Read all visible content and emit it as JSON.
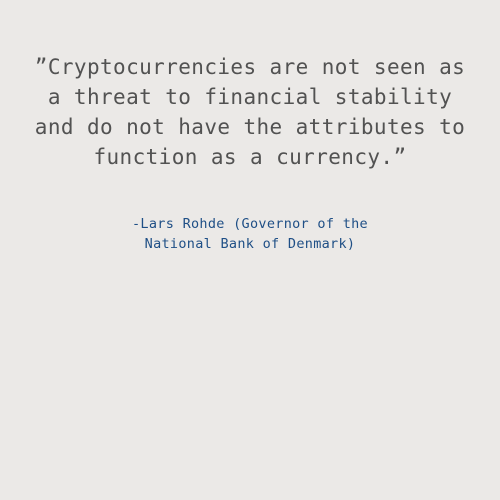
{
  "quote": {
    "lines": [
      "”Cryptocurrencies are not seen as",
      "a threat to financial stability",
      "and do not have the attributes to",
      "function as a currency.”"
    ]
  },
  "attribution": {
    "lines": [
      "-Lars Rohde (Governor of the",
      "National Bank of Denmark)"
    ]
  },
  "colors": {
    "background": "#ebe9e7",
    "quote_text": "#525252",
    "attribution_text": "#1f4f86"
  }
}
